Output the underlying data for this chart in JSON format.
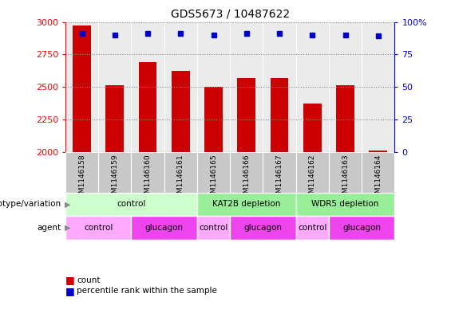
{
  "title": "GDS5673 / 10487622",
  "samples": [
    "GSM1146158",
    "GSM1146159",
    "GSM1146160",
    "GSM1146161",
    "GSM1146165",
    "GSM1146166",
    "GSM1146167",
    "GSM1146162",
    "GSM1146163",
    "GSM1146164"
  ],
  "counts": [
    2970,
    2510,
    2690,
    2620,
    2500,
    2570,
    2565,
    2370,
    2510,
    2010
  ],
  "percentiles": [
    91,
    90,
    91,
    91,
    90,
    91,
    91,
    90,
    90,
    89
  ],
  "ylim_left": [
    2000,
    3000
  ],
  "ylim_right": [
    0,
    100
  ],
  "yticks_left": [
    2000,
    2250,
    2500,
    2750,
    3000
  ],
  "yticks_right": [
    0,
    25,
    50,
    75,
    100
  ],
  "bar_color": "#cc0000",
  "dot_color": "#0000cc",
  "bar_width": 0.55,
  "grid_color": "#888888",
  "genotype_groups": [
    {
      "label": "control",
      "cols": [
        0,
        1,
        2,
        3
      ],
      "light_color": "#ccffcc",
      "dark_color": "#44cc44"
    },
    {
      "label": "KAT2B depletion",
      "cols": [
        4,
        5,
        6
      ],
      "light_color": "#99ee99",
      "dark_color": "#44cc44"
    },
    {
      "label": "WDR5 depletion",
      "cols": [
        7,
        8,
        9
      ],
      "light_color": "#99ee99",
      "dark_color": "#44cc44"
    }
  ],
  "agent_groups": [
    {
      "label": "control",
      "cols": [
        0,
        1
      ],
      "color": "#ffaaff"
    },
    {
      "label": "glucagon",
      "cols": [
        2,
        3
      ],
      "color": "#ee44ee"
    },
    {
      "label": "control",
      "cols": [
        4
      ],
      "color": "#ffaaff"
    },
    {
      "label": "glucagon",
      "cols": [
        5,
        6
      ],
      "color": "#ee44ee"
    },
    {
      "label": "control",
      "cols": [
        7
      ],
      "color": "#ffaaff"
    },
    {
      "label": "glucagon",
      "cols": [
        8,
        9
      ],
      "color": "#ee44ee"
    }
  ],
  "row1_label": "genotype/variation",
  "row2_label": "agent",
  "legend_count_color": "#cc0000",
  "legend_dot_color": "#0000cc",
  "tick_label_bg": "#c8c8c8",
  "tick_label_border": "#aaaaaa"
}
